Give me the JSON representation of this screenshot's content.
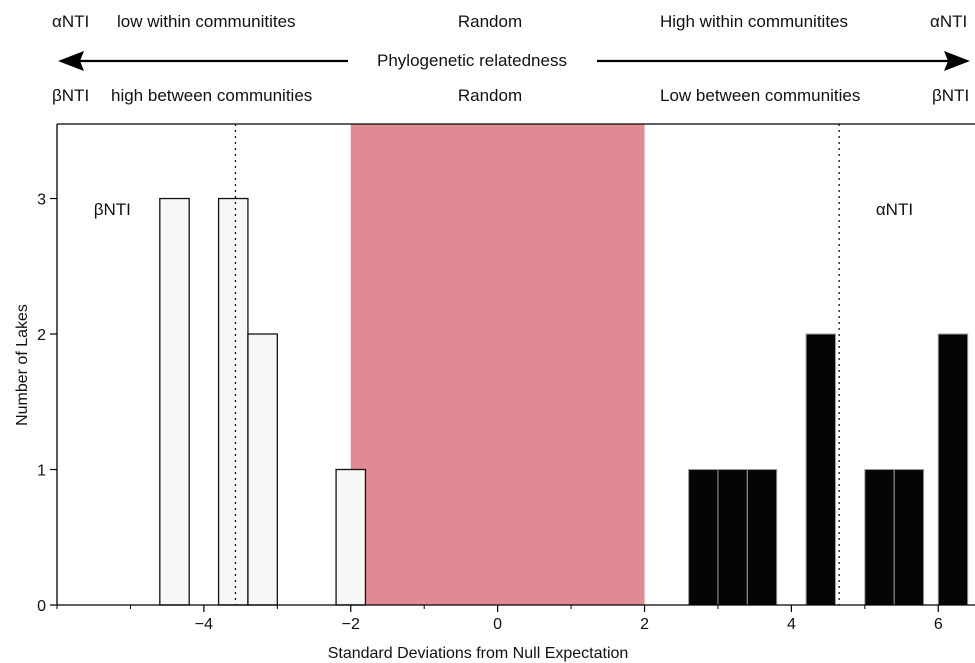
{
  "header": {
    "row1": {
      "alpha_left": "αNTI",
      "left": "low within communitites",
      "center": "Random",
      "right": "High within communitites",
      "alpha_right": "αNTI"
    },
    "arrow_label": "Phylogenetic relatedness",
    "row2": {
      "beta_left": "βNTI",
      "left": "high between communities",
      "center": "Random",
      "right": "Low between communities",
      "beta_right": "βNTI"
    }
  },
  "chart_data": {
    "type": "bar",
    "xlabel": "Standard Deviations from Null Expectation",
    "ylabel": "Number of Lakes",
    "xlim": [
      -6.0,
      6.5
    ],
    "ylim": [
      0,
      3.55
    ],
    "xticks": [
      -4,
      -2,
      0,
      2,
      4,
      6
    ],
    "yticks": [
      0,
      1,
      2,
      3
    ],
    "random_band": {
      "from": -2,
      "to": 2,
      "color": "#E08A94"
    },
    "series": [
      {
        "name": "βNTI",
        "fill": "#f7f7f7",
        "bin_width": 0.4,
        "bins": [
          {
            "x0": -4.6,
            "value": 3
          },
          {
            "x0": -3.8,
            "value": 3
          },
          {
            "x0": -3.4,
            "value": 2
          },
          {
            "x0": -2.2,
            "value": 1
          }
        ],
        "mean_line": -3.57
      },
      {
        "name": "αNTI",
        "fill": "#050505",
        "bin_width": 0.4,
        "bins": [
          {
            "x0": 2.6,
            "value": 1
          },
          {
            "x0": 3.0,
            "value": 1
          },
          {
            "x0": 3.4,
            "value": 1
          },
          {
            "x0": 4.2,
            "value": 2
          },
          {
            "x0": 5.0,
            "value": 1
          },
          {
            "x0": 5.4,
            "value": 1
          },
          {
            "x0": 6.0,
            "value": 2
          }
        ],
        "mean_line": 4.65
      }
    ],
    "annotations": [
      {
        "text": "βNTI",
        "x": -5.5,
        "y": 2.88
      },
      {
        "text": "αNTI",
        "x": 5.15,
        "y": 2.88
      }
    ]
  }
}
